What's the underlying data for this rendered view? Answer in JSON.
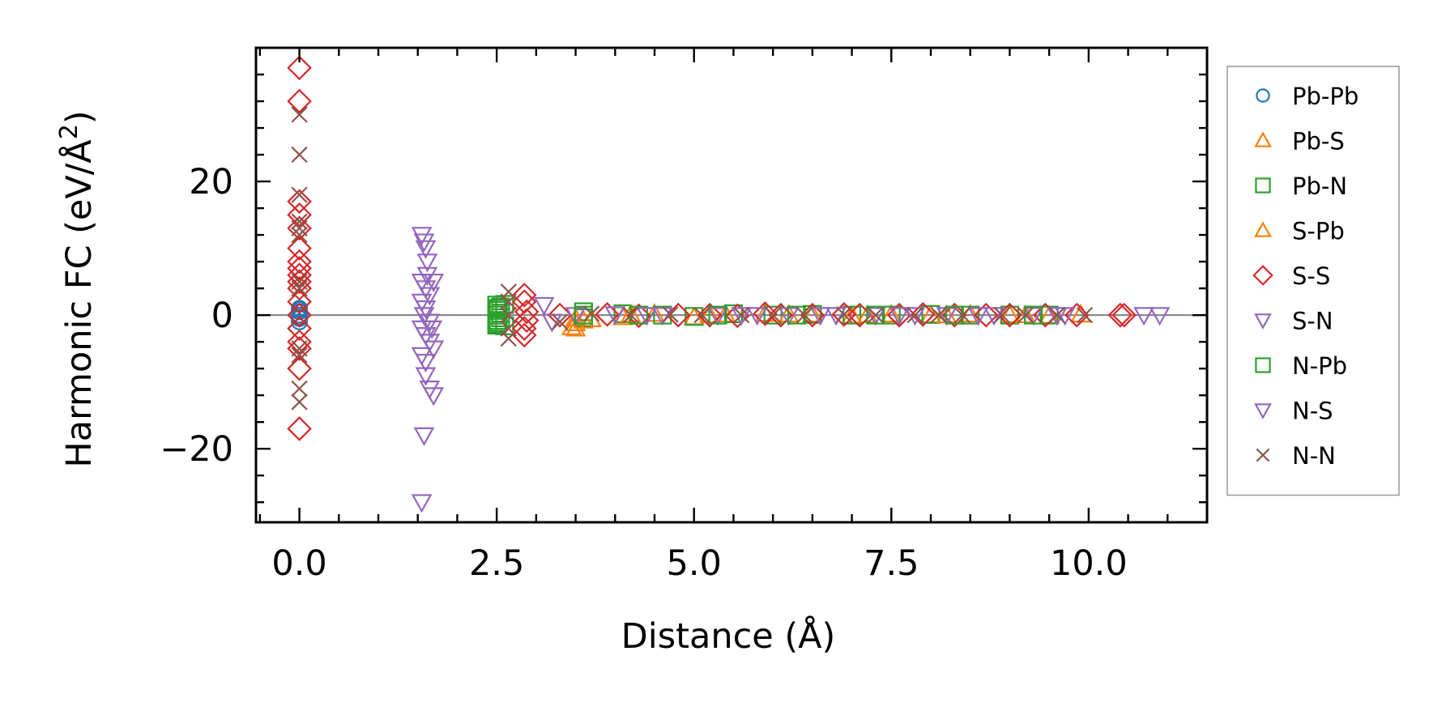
{
  "chart_data": {
    "type": "scatter",
    "title": "",
    "xlabel": "Distance (Å)",
    "ylabel": "Harmonic FC (eV/Å²)",
    "xlim": [
      -0.55,
      11.5
    ],
    "ylim": [
      -31,
      40
    ],
    "xticks": [
      0.0,
      2.5,
      5.0,
      7.5,
      10.0
    ],
    "xtick_labels": [
      "0.0",
      "2.5",
      "5.0",
      "7.5",
      "10.0"
    ],
    "yticks": [
      -20,
      0,
      20
    ],
    "ytick_labels": [
      "−20",
      "0",
      "20"
    ],
    "zero_line": true,
    "grid": false,
    "legend_position": "outside-right",
    "series": [
      {
        "name": "Pb-Pb",
        "marker": "circle",
        "color": "#1f77b4",
        "points": [
          [
            0,
            1
          ],
          [
            0,
            0.5
          ],
          [
            0,
            0
          ],
          [
            0,
            -0.5
          ],
          [
            0,
            -1
          ],
          [
            0,
            0.8
          ],
          [
            0,
            -0.3
          ]
        ]
      },
      {
        "name": "Pb-S",
        "marker": "triangle-up",
        "color": "#ff7f0e",
        "points": [
          [
            3.45,
            -1.8
          ],
          [
            3.5,
            -2
          ],
          [
            3.5,
            -0.5
          ],
          [
            3.7,
            -0.6
          ],
          [
            4.1,
            -0.3
          ],
          [
            4.5,
            0.2
          ],
          [
            5.0,
            -0.3
          ],
          [
            5.4,
            0.1
          ],
          [
            5.9,
            0.2
          ],
          [
            6.5,
            0.1
          ],
          [
            7.0,
            -0.1
          ],
          [
            7.5,
            0.1
          ],
          [
            8.0,
            0
          ],
          [
            8.5,
            0.1
          ],
          [
            9.0,
            0
          ],
          [
            9.5,
            -0.1
          ],
          [
            9.9,
            0.1
          ]
        ]
      },
      {
        "name": "Pb-N",
        "marker": "square",
        "color": "#2ca02c",
        "points": [
          [
            2.5,
            1.5
          ],
          [
            2.5,
            0.7
          ],
          [
            2.5,
            0
          ],
          [
            2.5,
            -0.8
          ],
          [
            2.5,
            -1.5
          ],
          [
            2.52,
            1.0
          ],
          [
            2.52,
            -1.1
          ],
          [
            2.55,
            0.3
          ],
          [
            2.55,
            -0.4
          ],
          [
            2.6,
            1.6
          ],
          [
            2.6,
            -1.6
          ],
          [
            3.6,
            0.5
          ],
          [
            3.6,
            -0.4
          ],
          [
            4.1,
            0.2
          ],
          [
            4.6,
            0
          ],
          [
            5.0,
            -0.2
          ],
          [
            5.5,
            0.2
          ],
          [
            6.0,
            0
          ],
          [
            6.5,
            0.1
          ],
          [
            7.0,
            0
          ],
          [
            7.5,
            0
          ],
          [
            8.0,
            0.1
          ],
          [
            8.5,
            0
          ],
          [
            9.0,
            0
          ],
          [
            9.5,
            0
          ]
        ]
      },
      {
        "name": "S-Pb",
        "marker": "triangle-up",
        "color": "#ff7f0e",
        "points": [
          [
            3.5,
            -1.2
          ],
          [
            3.6,
            -0.8
          ],
          [
            4.2,
            0.1
          ],
          [
            5.2,
            0
          ],
          [
            6.2,
            0.1
          ],
          [
            7.2,
            0
          ],
          [
            8.2,
            0
          ],
          [
            9.2,
            0
          ]
        ]
      },
      {
        "name": "S-S",
        "marker": "diamond",
        "color": "#d62728",
        "points": [
          [
            0,
            37
          ],
          [
            0,
            32
          ],
          [
            0,
            17
          ],
          [
            0,
            15
          ],
          [
            0,
            13
          ],
          [
            0,
            10
          ],
          [
            0,
            8
          ],
          [
            0,
            7
          ],
          [
            0,
            6
          ],
          [
            0,
            5
          ],
          [
            0,
            4
          ],
          [
            0,
            2
          ],
          [
            0,
            0
          ],
          [
            0,
            -2
          ],
          [
            0,
            -4
          ],
          [
            0,
            -5
          ],
          [
            0,
            -8
          ],
          [
            0,
            -17
          ],
          [
            2.85,
            3
          ],
          [
            2.85,
            2
          ],
          [
            2.85,
            -2
          ],
          [
            2.85,
            -3
          ],
          [
            2.88,
            0.5
          ],
          [
            2.88,
            -0.8
          ],
          [
            3.3,
            0
          ],
          [
            3.9,
            0.1
          ],
          [
            4.3,
            -0.1
          ],
          [
            4.8,
            0
          ],
          [
            5.2,
            0
          ],
          [
            5.55,
            -0.1
          ],
          [
            5.9,
            0.2
          ],
          [
            6.1,
            0
          ],
          [
            6.5,
            0
          ],
          [
            6.9,
            0.1
          ],
          [
            7.1,
            0
          ],
          [
            7.6,
            0
          ],
          [
            7.9,
            0.1
          ],
          [
            8.3,
            0
          ],
          [
            8.7,
            0
          ],
          [
            9.0,
            0
          ],
          [
            9.45,
            0
          ],
          [
            9.85,
            0
          ],
          [
            10.4,
            0
          ],
          [
            10.45,
            0
          ]
        ]
      },
      {
        "name": "S-N",
        "marker": "triangle-down",
        "color": "#9467bd",
        "points": [
          [
            1.55,
            12
          ],
          [
            1.58,
            11
          ],
          [
            1.6,
            10
          ],
          [
            1.55,
            5
          ],
          [
            1.6,
            4
          ],
          [
            1.65,
            3
          ],
          [
            1.7,
            5
          ],
          [
            1.55,
            2
          ],
          [
            1.6,
            1
          ],
          [
            1.65,
            -1
          ],
          [
            1.55,
            -2
          ],
          [
            1.6,
            -3
          ],
          [
            1.65,
            -4
          ],
          [
            1.7,
            -5
          ],
          [
            1.55,
            -6
          ],
          [
            1.6,
            -9
          ],
          [
            1.65,
            -11
          ],
          [
            1.7,
            -12
          ],
          [
            1.58,
            -18
          ],
          [
            1.55,
            -28
          ],
          [
            1.62,
            6
          ],
          [
            1.68,
            -2
          ],
          [
            3.1,
            1.5
          ],
          [
            3.5,
            0
          ],
          [
            4.0,
            0.1
          ],
          [
            4.6,
            0
          ],
          [
            5.3,
            0
          ],
          [
            5.8,
            0
          ],
          [
            6.2,
            0
          ],
          [
            6.8,
            0
          ],
          [
            7.3,
            0
          ],
          [
            7.8,
            0
          ],
          [
            8.2,
            0
          ],
          [
            8.8,
            0
          ],
          [
            9.3,
            0
          ],
          [
            9.7,
            0
          ],
          [
            10.9,
            0
          ]
        ]
      },
      {
        "name": "N-Pb",
        "marker": "square",
        "color": "#2ca02c",
        "points": [
          [
            2.5,
            -1.3
          ],
          [
            2.55,
            1.2
          ],
          [
            3.6,
            0
          ],
          [
            4.3,
            0
          ],
          [
            5.3,
            0
          ],
          [
            6.3,
            0
          ],
          [
            7.3,
            0
          ],
          [
            8.3,
            0
          ],
          [
            9.3,
            0
          ]
        ]
      },
      {
        "name": "N-S",
        "marker": "triangle-down",
        "color": "#9467bd",
        "points": [
          [
            1.6,
            -7
          ],
          [
            1.62,
            8
          ],
          [
            1.58,
            0
          ],
          [
            3.2,
            -1
          ],
          [
            4.4,
            0
          ],
          [
            5.6,
            0
          ],
          [
            6.6,
            0
          ],
          [
            7.6,
            0
          ],
          [
            8.6,
            0
          ],
          [
            9.6,
            0
          ],
          [
            10.7,
            0
          ]
        ]
      },
      {
        "name": "N-N",
        "marker": "x",
        "color": "#8c564b",
        "points": [
          [
            0,
            30
          ],
          [
            0,
            24
          ],
          [
            0,
            18
          ],
          [
            0,
            14
          ],
          [
            0,
            13
          ],
          [
            0,
            12
          ],
          [
            0,
            5
          ],
          [
            0,
            4
          ],
          [
            0,
            -5
          ],
          [
            0,
            -6
          ],
          [
            0,
            -11
          ],
          [
            0,
            -13
          ],
          [
            2.65,
            3.5
          ],
          [
            2.65,
            2
          ],
          [
            2.65,
            0
          ],
          [
            2.65,
            -2
          ],
          [
            2.65,
            -3.5
          ],
          [
            3.3,
            -1
          ],
          [
            3.7,
            0.2
          ],
          [
            4.2,
            0
          ],
          [
            4.7,
            0.1
          ],
          [
            5.1,
            0
          ],
          [
            5.6,
            0
          ],
          [
            6.0,
            0
          ],
          [
            6.4,
            0
          ],
          [
            6.9,
            0.1
          ],
          [
            7.3,
            0
          ],
          [
            7.8,
            0
          ],
          [
            8.1,
            0
          ],
          [
            8.4,
            0
          ],
          [
            8.9,
            0
          ],
          [
            9.2,
            0
          ],
          [
            9.6,
            0
          ],
          [
            9.95,
            0
          ]
        ]
      }
    ]
  }
}
